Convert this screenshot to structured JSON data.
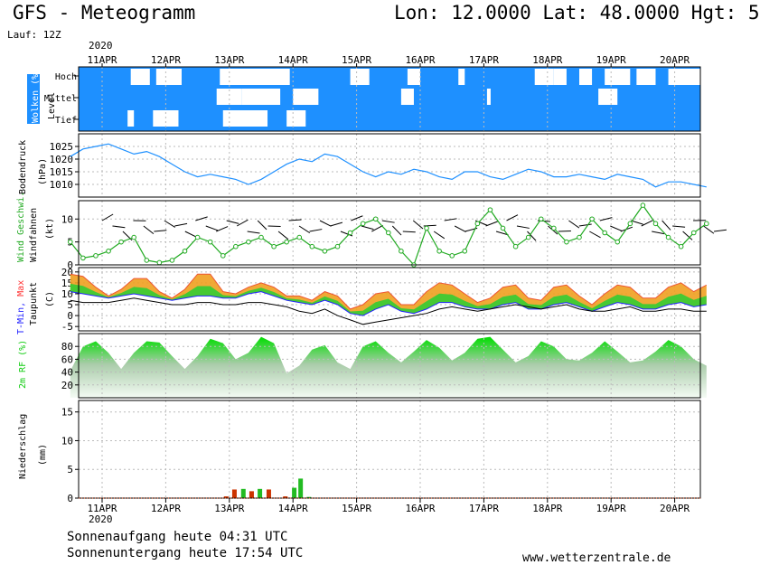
{
  "header": {
    "title_left": "GFS - Meteogramm",
    "title_right": "Lon: 12.0000 Lat: 48.0000 Hgt: 5",
    "run": "Lauf: 12Z",
    "year": "2020"
  },
  "footer": {
    "sunrise": "Sonnenaufgang heute 04:31 UTC",
    "sunset": "Sonnenuntergang heute 17:54 UTC",
    "website": "www.wetterzentrale.de"
  },
  "colors": {
    "cloud_bg": "#1e90ff",
    "pressure_line": "#1e90ff",
    "wind_line": "#22aa22",
    "humidity": "#11cc11",
    "tmax": "#ff3333",
    "tmin": "#2222ff",
    "dewpoint": "#000000",
    "precip_red": "#cc3300",
    "precip_green": "#22bb22"
  },
  "chart_data": [
    {
      "type": "heatmap",
      "panel": "clouds",
      "ylabel": "Wolken (%)",
      "ylabel2": "Level",
      "levels": [
        "Hoch",
        "Mittel",
        "Tief"
      ],
      "x": [
        "11APR",
        "12APR",
        "13APR",
        "14APR",
        "15APR",
        "16APR",
        "17APR",
        "18APR",
        "19APR",
        "20APR"
      ]
    },
    {
      "type": "line",
      "panel": "pressure",
      "ylabel": "Bodendruck",
      "unit": "(hPa)",
      "ylim": [
        1005,
        1030
      ],
      "yticks": [
        1010,
        1015,
        1020,
        1025
      ],
      "xlim": [
        0,
        10
      ],
      "x": [
        0,
        0.2,
        0.4,
        0.6,
        0.8,
        1.0,
        1.2,
        1.4,
        1.6,
        1.8,
        2.0,
        2.2,
        2.4,
        2.6,
        2.8,
        3.0,
        3.2,
        3.4,
        3.6,
        3.8,
        4.0,
        4.2,
        4.4,
        4.6,
        4.8,
        5.0,
        5.2,
        5.4,
        5.6,
        5.8,
        6.0,
        6.2,
        6.4,
        6.6,
        6.8,
        7.0,
        7.2,
        7.4,
        7.6,
        7.8,
        8.0,
        8.2,
        8.4,
        8.6,
        8.8,
        9.0,
        9.2,
        9.4,
        9.6,
        9.8,
        10.0
      ],
      "values": [
        1021,
        1024,
        1025,
        1026,
        1024,
        1022,
        1023,
        1021,
        1018,
        1015,
        1013,
        1014,
        1013,
        1012,
        1010,
        1012,
        1015,
        1018,
        1020,
        1019,
        1022,
        1021,
        1018,
        1015,
        1013,
        1015,
        1014,
        1016,
        1015,
        1013,
        1012,
        1015,
        1015,
        1013,
        1012,
        1014,
        1016,
        1015,
        1013,
        1013,
        1014,
        1013,
        1012,
        1014,
        1013,
        1012,
        1009,
        1011,
        1011,
        1010,
        1009
      ]
    },
    {
      "type": "line",
      "panel": "wind",
      "ylabel": "Wind Geschwi.",
      "ylabel2": "Windfahnen",
      "unit": "(kt)",
      "ylim": [
        0,
        14
      ],
      "yticks": [
        0,
        5,
        10
      ],
      "x": [
        0,
        0.2,
        0.4,
        0.6,
        0.8,
        1.0,
        1.2,
        1.4,
        1.6,
        1.8,
        2.0,
        2.2,
        2.4,
        2.6,
        2.8,
        3.0,
        3.2,
        3.4,
        3.6,
        3.8,
        4.0,
        4.2,
        4.4,
        4.6,
        4.8,
        5.0,
        5.2,
        5.4,
        5.6,
        5.8,
        6.0,
        6.2,
        6.4,
        6.6,
        6.8,
        7.0,
        7.2,
        7.4,
        7.6,
        7.8,
        8.0,
        8.2,
        8.4,
        8.6,
        8.8,
        9.0,
        9.2,
        9.4,
        9.6,
        9.8,
        10.0
      ],
      "values": [
        5,
        1.5,
        2,
        3,
        5,
        6,
        1,
        0.5,
        1,
        3,
        6,
        5,
        2,
        4,
        5,
        6,
        4,
        5,
        6,
        4,
        3,
        4,
        7,
        9,
        10,
        7,
        3,
        0,
        8,
        3,
        2,
        3,
        9,
        12,
        8,
        4,
        6,
        10,
        8,
        5,
        6,
        10,
        7,
        5,
        9,
        13,
        9,
        6,
        4,
        7,
        9
      ]
    },
    {
      "type": "area",
      "panel": "temperature",
      "ylabel": "T-Min, Max",
      "ylabel2": "Taupunkt",
      "unit": "(C)",
      "ylim": [
        -7,
        22
      ],
      "yticks": [
        -5,
        0,
        5,
        10,
        15,
        20
      ],
      "x": [
        0,
        0.2,
        0.4,
        0.6,
        0.8,
        1.0,
        1.2,
        1.4,
        1.6,
        1.8,
        2.0,
        2.2,
        2.4,
        2.6,
        2.8,
        3.0,
        3.2,
        3.4,
        3.6,
        3.8,
        4.0,
        4.2,
        4.4,
        4.6,
        4.8,
        5.0,
        5.2,
        5.4,
        5.6,
        5.8,
        6.0,
        6.2,
        6.4,
        6.6,
        6.8,
        7.0,
        7.2,
        7.4,
        7.6,
        7.8,
        8.0,
        8.2,
        8.4,
        8.6,
        8.8,
        9.0,
        9.2,
        9.4,
        9.6,
        9.8,
        10.0
      ],
      "tmax": [
        19,
        18,
        13,
        9,
        12,
        17,
        17,
        11,
        8,
        12,
        19,
        19,
        11,
        10,
        13,
        15,
        13,
        9,
        9,
        7,
        11,
        9,
        3,
        5,
        10,
        11,
        5,
        5,
        11,
        15,
        14,
        10,
        6,
        8,
        13,
        14,
        8,
        7,
        13,
        14,
        9,
        5,
        10,
        14,
        13,
        8,
        8,
        13,
        15,
        11,
        14
      ],
      "tmin": [
        11,
        10,
        9,
        8,
        9,
        10,
        9,
        8,
        7,
        8,
        9,
        9,
        8,
        8,
        10,
        11,
        9,
        7,
        6,
        5,
        7,
        5,
        1,
        0,
        3,
        5,
        2,
        1,
        3,
        6,
        6,
        4,
        3,
        3,
        5,
        6,
        3,
        3,
        5,
        6,
        4,
        2,
        4,
        6,
        5,
        3,
        3,
        5,
        6,
        4,
        5
      ],
      "dewpoint": [
        7,
        6,
        6,
        6,
        7,
        8,
        7,
        6,
        5,
        5,
        6,
        6,
        5,
        5,
        6,
        6,
        5,
        4,
        2,
        1,
        3,
        0,
        -2,
        -4,
        -3,
        -2,
        -1,
        0,
        1,
        3,
        4,
        3,
        2,
        3,
        4,
        5,
        4,
        3,
        4,
        5,
        3,
        2,
        2,
        3,
        4,
        2,
        2,
        3,
        3,
        2,
        2
      ]
    },
    {
      "type": "area",
      "panel": "humidity",
      "ylabel": "2m RF (%)",
      "ylim": [
        0,
        100
      ],
      "yticks": [
        20,
        40,
        60,
        80
      ],
      "x": [
        0,
        0.2,
        0.4,
        0.6,
        0.8,
        1.0,
        1.2,
        1.4,
        1.6,
        1.8,
        2.0,
        2.2,
        2.4,
        2.6,
        2.8,
        3.0,
        3.2,
        3.4,
        3.6,
        3.8,
        4.0,
        4.2,
        4.4,
        4.6,
        4.8,
        5.0,
        5.2,
        5.4,
        5.6,
        5.8,
        6.0,
        6.2,
        6.4,
        6.6,
        6.8,
        7.0,
        7.2,
        7.4,
        7.6,
        7.8,
        8.0,
        8.2,
        8.4,
        8.6,
        8.8,
        9.0,
        9.2,
        9.4,
        9.6,
        9.8,
        10.0
      ],
      "values": [
        42,
        80,
        88,
        70,
        45,
        70,
        88,
        86,
        65,
        45,
        65,
        92,
        85,
        60,
        70,
        95,
        85,
        38,
        50,
        75,
        82,
        55,
        45,
        80,
        88,
        70,
        55,
        72,
        90,
        78,
        58,
        70,
        92,
        95,
        75,
        55,
        65,
        88,
        80,
        60,
        58,
        70,
        88,
        72,
        55,
        58,
        72,
        90,
        80,
        60,
        50
      ]
    },
    {
      "type": "bar",
      "panel": "precipitation",
      "ylabel": "Niederschlag",
      "unit": "(mm)",
      "ylim": [
        0,
        17
      ],
      "yticks": [
        0,
        5,
        10,
        15
      ],
      "x": [
        "11APR",
        "12APR",
        "13APR",
        "14APR",
        "15APR",
        "16APR",
        "17APR",
        "18APR",
        "19APR",
        "20APR"
      ],
      "bars": [
        {
          "x": 2.45,
          "value": 0.3,
          "color": "red"
        },
        {
          "x": 2.58,
          "value": 1.5,
          "color": "red"
        },
        {
          "x": 2.72,
          "value": 1.6,
          "color": "green"
        },
        {
          "x": 2.85,
          "value": 1.2,
          "color": "red"
        },
        {
          "x": 2.98,
          "value": 1.6,
          "color": "green"
        },
        {
          "x": 3.12,
          "value": 1.5,
          "color": "red"
        },
        {
          "x": 3.38,
          "value": 0.3,
          "color": "red"
        },
        {
          "x": 3.52,
          "value": 1.8,
          "color": "green"
        },
        {
          "x": 3.62,
          "value": 3.4,
          "color": "green"
        },
        {
          "x": 3.75,
          "value": 0.2,
          "color": "green"
        }
      ]
    }
  ]
}
